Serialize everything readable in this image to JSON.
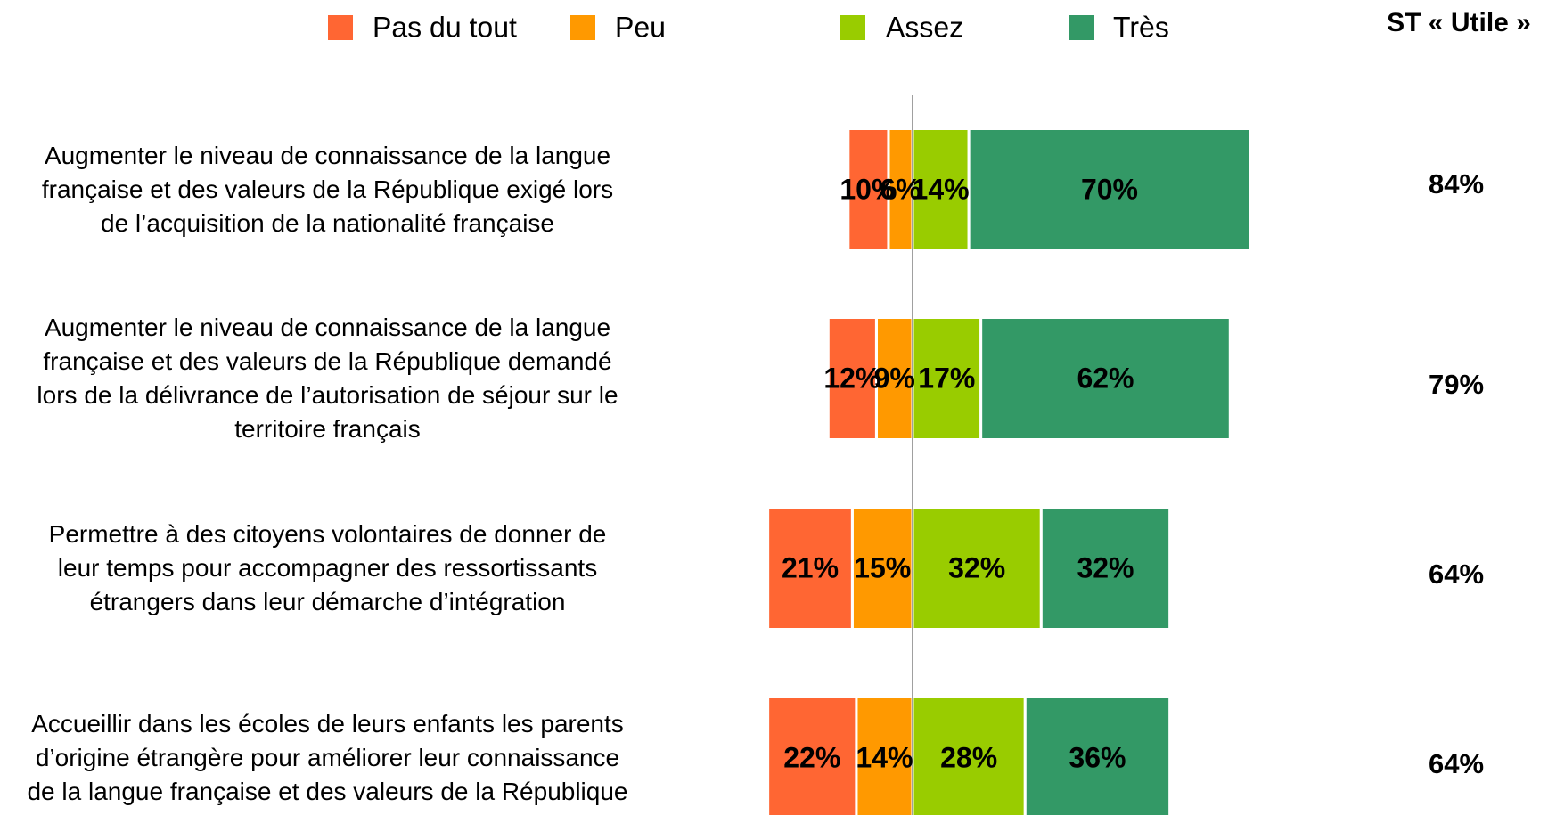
{
  "chart_data": {
    "type": "diverging_bar",
    "categories": [
      "Augmenter le niveau de connaissance de la langue\nfrançaise et des valeurs de la République exigé lors\nde l’acquisition de la nationalité française",
      "Augmenter le niveau de connaissance de la langue\nfrançaise et des valeurs de la République demandé\nlors de la délivrance de l’autorisation de séjour sur le\nterritoire français",
      "Permettre à des citoyens volontaires de donner de\nleur temps pour accompagner des ressortissants\nétrangers dans leur démarche d’intégration",
      "Accueillir dans les écoles de leurs enfants les parents\nd’origine étrangère pour améliorer leur connaissance\nde la langue française et des valeurs de la République"
    ],
    "series": [
      {
        "name": "Pas du tout",
        "color": "#ff6633",
        "side": "negative",
        "values": [
          10,
          12,
          21,
          22
        ],
        "value_labels": [
          "10%",
          "12%",
          "21%",
          "22%"
        ]
      },
      {
        "name": "Peu",
        "color": "#ff9900",
        "side": "negative",
        "values": [
          6,
          9,
          15,
          14
        ],
        "value_labels": [
          "6%",
          "9%",
          "15%",
          "14%"
        ]
      },
      {
        "name": "Assez",
        "color": "#99cc00",
        "side": "positive",
        "values": [
          14,
          17,
          32,
          28
        ],
        "value_labels": [
          "14%",
          "17%",
          "32%",
          "28%"
        ]
      },
      {
        "name": "Très",
        "color": "#339966",
        "side": "positive",
        "values": [
          70,
          62,
          32,
          36
        ],
        "value_labels": [
          "70%",
          "62%",
          "32%",
          "36%"
        ]
      }
    ],
    "totals": {
      "title": "ST « Utile »",
      "values": [
        84,
        79,
        64,
        64
      ],
      "value_labels": [
        "84%",
        "79%",
        "64%",
        "64%"
      ]
    }
  }
}
